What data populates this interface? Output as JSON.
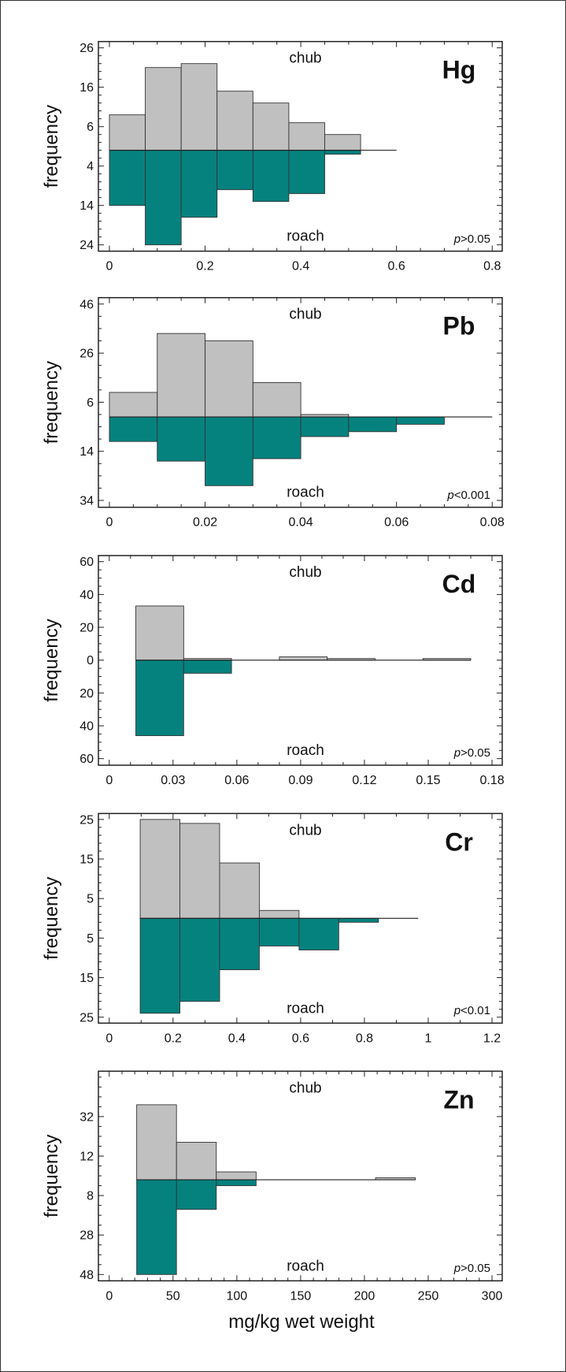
{
  "figure": {
    "xlabel": "mg/kg wet weight",
    "colors": {
      "chub": "#c0c0c0",
      "roach": "#06827e",
      "outline": "#333333"
    }
  },
  "chart_data": [
    {
      "type": "bar",
      "title": "Hg",
      "ylabel": "frequency",
      "annotation": "p>0.05",
      "bin_edges": [
        0,
        0.075,
        0.15,
        0.225,
        0.3,
        0.375,
        0.45,
        0.525,
        0.6
      ],
      "series": [
        {
          "name": "chub",
          "direction": "up",
          "values": [
            9,
            21,
            22,
            15,
            12,
            7,
            4,
            0
          ]
        },
        {
          "name": "roach",
          "direction": "down",
          "values": [
            14,
            24,
            17,
            10,
            13,
            11,
            1,
            0
          ]
        }
      ],
      "xlim": [
        -0.023,
        0.821
      ],
      "ylim": [
        -25.6,
        27.6
      ],
      "xticks": [
        0,
        0.2,
        0.4,
        0.6,
        0.8
      ],
      "xtick_labels": [
        "0",
        "0.2",
        "0.4",
        "0.6",
        "0.8"
      ],
      "xminor": 0.05,
      "yticks": [
        26,
        16,
        6,
        -4,
        -14,
        -24
      ],
      "ytick_labels": [
        "26",
        "16",
        "6",
        "4",
        "14",
        "24"
      ],
      "yminor": 2
    },
    {
      "type": "bar",
      "title": "Pb",
      "ylabel": "frequency",
      "annotation": "p<0.001",
      "bin_edges": [
        0,
        0.01,
        0.02,
        0.03,
        0.04,
        0.05,
        0.06,
        0.07,
        0.08
      ],
      "series": [
        {
          "name": "chub",
          "direction": "up",
          "values": [
            10,
            34,
            31,
            14,
            1,
            0,
            0,
            0
          ]
        },
        {
          "name": "roach",
          "direction": "down",
          "values": [
            10,
            18,
            28,
            17,
            8,
            6,
            3,
            0
          ]
        }
      ],
      "xlim": [
        -0.0023,
        0.0821
      ],
      "ylim": [
        -36.8,
        48.6
      ],
      "xticks": [
        0,
        0.02,
        0.04,
        0.06,
        0.08
      ],
      "xtick_labels": [
        "0",
        "0.02",
        "0.04",
        "0.06",
        "0.08"
      ],
      "xminor": 0.005,
      "yticks": [
        46,
        26,
        6,
        -14,
        -34
      ],
      "ytick_labels": [
        "46",
        "26",
        "6",
        "14",
        "34"
      ],
      "yminor": 5
    },
    {
      "type": "bar",
      "title": "Cd",
      "ylabel": "frequency",
      "annotation": "p>0.05",
      "bin_edges": [
        0.0125,
        0.035,
        0.0575,
        0.08,
        0.1025,
        0.125,
        0.1475,
        0.17
      ],
      "series": [
        {
          "name": "chub",
          "direction": "up",
          "values": [
            33,
            1,
            0,
            2,
            1,
            0,
            1
          ]
        },
        {
          "name": "roach",
          "direction": "down",
          "values": [
            46,
            8,
            0,
            0,
            0,
            0,
            0
          ]
        }
      ],
      "xlim": [
        -0.0051,
        0.1848
      ],
      "ylim": [
        -64,
        63.7
      ],
      "xticks": [
        0,
        0.03,
        0.06,
        0.09,
        0.12,
        0.15,
        0.18
      ],
      "xtick_labels": [
        "0",
        "0.03",
        "0.06",
        "0.09",
        "0.12",
        "0.15",
        "0.18"
      ],
      "xminor": 0.01,
      "yticks": [
        60,
        40,
        20,
        0,
        -20,
        -40,
        -60
      ],
      "ytick_labels": [
        "60",
        "40",
        "20",
        "0",
        "20",
        "40",
        "60"
      ],
      "yminor": 5
    },
    {
      "type": "bar",
      "title": "Cr",
      "ylabel": "frequency",
      "annotation": "p<0.01",
      "bin_edges": [
        0.097,
        0.2215,
        0.346,
        0.4705,
        0.595,
        0.7195,
        0.844,
        0.9685
      ],
      "series": [
        {
          "name": "chub",
          "direction": "up",
          "values": [
            25,
            24,
            14,
            2,
            0,
            0,
            0
          ]
        },
        {
          "name": "roach",
          "direction": "down",
          "values": [
            24,
            21,
            13,
            7,
            8,
            1,
            0
          ]
        }
      ],
      "xlim": [
        -0.034,
        1.232
      ],
      "ylim": [
        -26.5,
        26.5
      ],
      "xticks": [
        0,
        0.2,
        0.4,
        0.6,
        0.8,
        1,
        1.2
      ],
      "xtick_labels": [
        "0",
        "0.2",
        "0.4",
        "0.6",
        "0.8",
        "1",
        "1.2"
      ],
      "xminor": 0.1,
      "yticks": [
        25,
        15,
        5,
        -5,
        -15,
        -25
      ],
      "ytick_labels": [
        "25",
        "15",
        "5",
        "5",
        "15",
        "25"
      ],
      "yminor": 2
    },
    {
      "type": "bar",
      "title": "Zn",
      "ylabel": "frequency",
      "annotation": "p>0.05",
      "bin_edges": [
        21.5,
        52.7,
        83.9,
        115.1,
        146.3,
        177.5,
        208.7,
        239.9
      ],
      "series": [
        {
          "name": "chub",
          "direction": "up",
          "values": [
            38,
            19,
            4,
            0,
            0,
            0,
            1
          ]
        },
        {
          "name": "roach",
          "direction": "down",
          "values": [
            48,
            15,
            3,
            0,
            0,
            0,
            0
          ]
        }
      ],
      "xlim": [
        -8.5,
        308
      ],
      "ylim": [
        -51.2,
        55
      ],
      "xticks": [
        0,
        50,
        100,
        150,
        200,
        250,
        300
      ],
      "xtick_labels": [
        "0",
        "50",
        "100",
        "150",
        "200",
        "250",
        "300"
      ],
      "xminor": 10,
      "yticks": [
        32,
        12,
        -8,
        -28,
        -48
      ],
      "ytick_labels": [
        "32",
        "12",
        "8",
        "28",
        "48"
      ],
      "yminor": 5
    }
  ]
}
